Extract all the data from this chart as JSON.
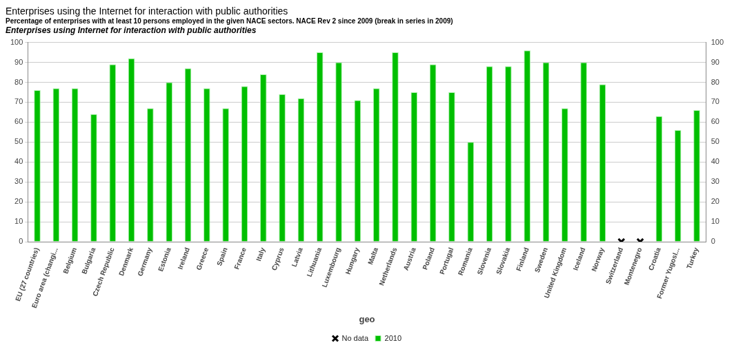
{
  "chart_data": {
    "type": "bar",
    "title": "Enterprises using the Internet for interaction with public authorities",
    "subtitle": "Percentage of enterprises with at least 10 persons employed in the given NACE sectors. NACE Rev 2 since 2009 (break in series in 2009)",
    "annotations": [
      "Enterprises using Internet for interaction with public authorities"
    ],
    "xlabel": "geo",
    "categories": [
      "EU (27 countries)",
      "Euro area (changi...",
      "Belgium",
      "Bulgaria",
      "Czech Republic",
      "Denmark",
      "Germany",
      "Estonia",
      "Ireland",
      "Greece",
      "Spain",
      "France",
      "Italy",
      "Cyprus",
      "Latvia",
      "Lithuania",
      "Luxembourg",
      "Hungary",
      "Malta",
      "Netherlands",
      "Austria",
      "Poland",
      "Portugal",
      "Romania",
      "Slovenia",
      "Slovakia",
      "Finland",
      "Sweden",
      "United Kingdom",
      "Iceland",
      "Norway",
      "Switzerland",
      "Montenegro",
      "Croatia",
      "Former Yugosl...",
      "Turkey"
    ],
    "series": [
      {
        "name": "2010",
        "color": "#00bf00",
        "values": [
          76,
          77,
          77,
          64,
          89,
          92,
          67,
          80,
          87,
          77,
          67,
          78,
          84,
          74,
          72,
          95,
          90,
          71,
          77,
          95,
          75,
          89,
          75,
          50,
          88,
          88,
          96,
          90,
          67,
          90,
          79,
          null,
          null,
          63,
          56,
          66
        ]
      },
      {
        "name": "No data",
        "type": "scatter",
        "color": "#000000",
        "x": [
          "Switzerland",
          "Montenegro"
        ],
        "values": [
          0,
          0
        ]
      }
    ],
    "marker": "cross",
    "ylim": [
      0,
      100
    ],
    "yticks": [
      0,
      10,
      20,
      30,
      40,
      50,
      60,
      70,
      80,
      90,
      100
    ],
    "y2lim": [
      0,
      100
    ],
    "y2ticks": [
      0,
      10,
      20,
      30,
      40,
      50,
      60,
      70,
      80,
      90,
      100
    ],
    "grid": "y",
    "legend": "bottom"
  }
}
